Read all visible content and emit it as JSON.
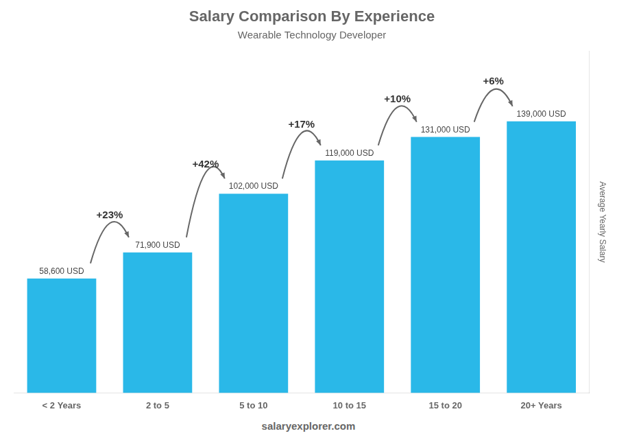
{
  "chart_data": {
    "type": "bar",
    "title": "Salary Comparison By Experience",
    "subtitle": "Wearable Technology Developer",
    "y_label": "Average Yearly Salary",
    "categories": [
      "< 2 Years",
      "2 to 5",
      "5 to 10",
      "10 to 15",
      "15 to 20",
      "20+ Years"
    ],
    "values": [
      58600,
      71900,
      102000,
      119000,
      131000,
      139000
    ],
    "value_labels": [
      "58,600 USD",
      "71,900 USD",
      "102,000 USD",
      "119,000 USD",
      "131,000 USD",
      "139,000 USD"
    ],
    "data_labels": true,
    "color": "#2ab8e8",
    "ylim": [
      0,
      175000
    ],
    "tick_labels": "x",
    "grid": false,
    "legend": false,
    "annotations": [
      {
        "text": "+23%",
        "from": "< 2 Years",
        "to": "2 to 5"
      },
      {
        "text": "+42%",
        "from": "2 to 5",
        "to": "5 to 10"
      },
      {
        "text": "+17%",
        "from": "5 to 10",
        "to": "10 to 15"
      },
      {
        "text": "+10%",
        "from": "10 to 15",
        "to": "15 to 20"
      },
      {
        "text": "+6%",
        "from": "15 to 20",
        "to": "20+ Years"
      }
    ],
    "footer": "salaryexplorer.com"
  }
}
